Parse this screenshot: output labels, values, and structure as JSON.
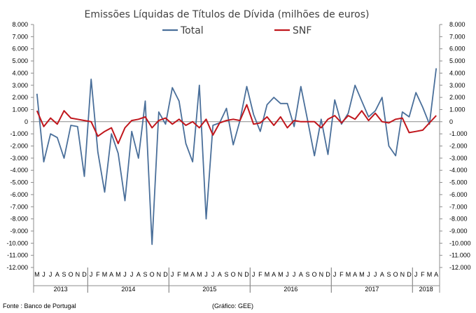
{
  "chart_data": {
    "type": "line",
    "title": "Emissões Líquidas de Títulos de Dívida (milhões de euros)",
    "ylim": [
      -12000,
      8000
    ],
    "ytick_step": 1000,
    "ytick_labels": [
      "8.000",
      "7.000",
      "6.000",
      "5.000",
      "4.000",
      "3.000",
      "2.000",
      "1.000",
      "0",
      "-1.000",
      "-2.000",
      "-3.000",
      "-4.000",
      "-5.000",
      "-6.000",
      "-7.000",
      "-8.000",
      "-9.000",
      "-10.000",
      "-11.000",
      "-12.000"
    ],
    "ytick_labels_right": [
      "8.000",
      "7.000",
      "6.000",
      "5.000",
      "4.000",
      "3.000",
      "2.000",
      "1.000",
      "0",
      "-1.000",
      "-2.000",
      "-3.000",
      "-4.000",
      "-5.000",
      "-6.000",
      "-7.000",
      "-8.000",
      "-9.000",
      "-10.000",
      "-11.000",
      "-12.000"
    ],
    "categories": [
      "M",
      "J",
      "J",
      "A",
      "S",
      "O",
      "N",
      "D",
      "J",
      "F",
      "M",
      "A",
      "M",
      "J",
      "J",
      "A",
      "S",
      "O",
      "N",
      "D",
      "J",
      "F",
      "M",
      "A",
      "M",
      "J",
      "J",
      "A",
      "S",
      "O",
      "N",
      "D",
      "J",
      "F",
      "M",
      "A",
      "M",
      "J",
      "J",
      "A",
      "S",
      "O",
      "N",
      "D",
      "J",
      "F",
      "M",
      "A",
      "M",
      "J",
      "J",
      "A",
      "S",
      "O",
      "N",
      "D",
      "J",
      "F",
      "M",
      "A"
    ],
    "years": [
      {
        "label": "2013",
        "start": 0,
        "count": 8
      },
      {
        "label": "2014",
        "start": 8,
        "count": 12
      },
      {
        "label": "2015",
        "start": 20,
        "count": 12
      },
      {
        "label": "2016",
        "start": 32,
        "count": 12
      },
      {
        "label": "2017",
        "start": 44,
        "count": 12
      },
      {
        "label": "2018",
        "start": 56,
        "count": 4
      }
    ],
    "series": [
      {
        "name": "Total",
        "color": "#4a6f9a",
        "values": [
          2300,
          -3300,
          -1000,
          -1300,
          -3000,
          -300,
          -400,
          -4500,
          3500,
          -2500,
          -5800,
          -1000,
          -2600,
          -6500,
          -800,
          -3000,
          1700,
          -10100,
          800,
          -200,
          2800,
          1700,
          -1800,
          -3300,
          3000,
          -8000,
          -300,
          -100,
          1100,
          -1900,
          100,
          2900,
          600,
          -800,
          1400,
          2000,
          1500,
          1500,
          -400,
          2900,
          100,
          -2800,
          200,
          -2700,
          1800,
          -200,
          700,
          3000,
          1700,
          400,
          900,
          2000,
          -2000,
          -2800,
          800,
          400,
          2400,
          1200,
          -200,
          4400
        ]
      },
      {
        "name": "SNF",
        "color": "#c0161c",
        "values": [
          900,
          -400,
          300,
          -200,
          900,
          300,
          200,
          100,
          0,
          -1200,
          -800,
          -500,
          -1800,
          -500,
          100,
          200,
          400,
          -500,
          100,
          300,
          -200,
          200,
          -300,
          0,
          -500,
          200,
          -1100,
          -100,
          100,
          200,
          100,
          1400,
          -200,
          -100,
          400,
          -300,
          400,
          -500,
          100,
          0,
          0,
          0,
          -500,
          200,
          500,
          -100,
          500,
          200,
          900,
          100,
          700,
          0,
          -100,
          200,
          300,
          -900,
          -800,
          -700,
          -100,
          500
        ]
      }
    ]
  },
  "footer": {
    "source": "Fonte : Banco de Portugal",
    "credit": "(Gráfico: GEE)"
  }
}
